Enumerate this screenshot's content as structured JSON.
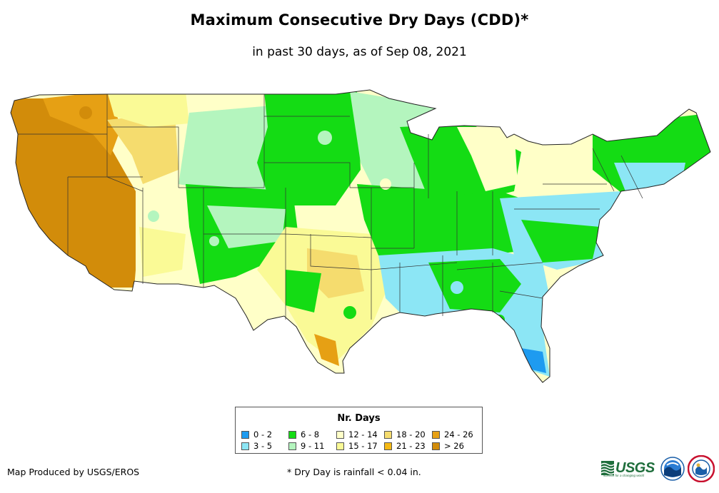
{
  "title": "Maximum Consecutive Dry Days (CDD)*",
  "subtitle": "in past 30 days, as of Sep 08, 2021",
  "legend": {
    "title": "Nr. Days",
    "items": [
      {
        "label": "0 - 2",
        "color": "#1e9bf0"
      },
      {
        "label": "3 - 5",
        "color": "#8ce6f5"
      },
      {
        "label": "6 - 8",
        "color": "#14dc14"
      },
      {
        "label": "9 - 11",
        "color": "#b4f5be"
      },
      {
        "label": "12 - 14",
        "color": "#ffffc8"
      },
      {
        "label": "15 - 17",
        "color": "#fafa96"
      },
      {
        "label": "18 - 20",
        "color": "#f5dc6e"
      },
      {
        "label": "21 - 23",
        "color": "#f5b914"
      },
      {
        "label": "24 - 26",
        "color": "#e6a014"
      },
      {
        "label": "> 26",
        "color": "#d28c0a"
      }
    ]
  },
  "footer": {
    "producer": "Map Produced by USGS/EROS",
    "note": "* Dry Day is rainfall < 0.04 in."
  },
  "logos": {
    "usgs": "USGS",
    "usgs_tagline": "science for a changing world"
  }
}
